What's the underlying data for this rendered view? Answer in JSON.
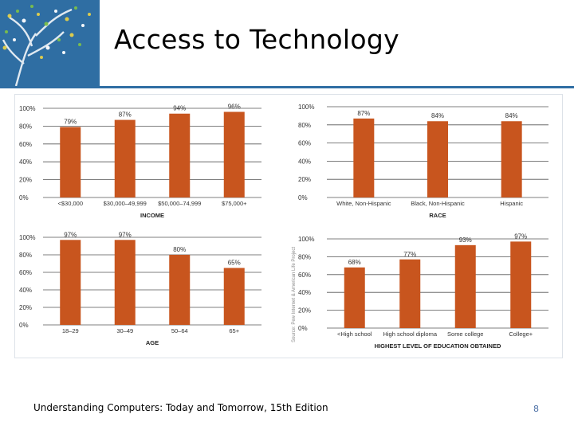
{
  "slide": {
    "title": "Access to Technology",
    "footer": "Understanding Computers: Today and Tomorrow, 15th Edition",
    "page_number": "8",
    "source_note": "Source: Pew Internet & American Life Project",
    "accent_color": "#2f6ea3",
    "bar_color": "#c8551e"
  },
  "chart_data": [
    {
      "type": "bar",
      "title": "INCOME",
      "categories": [
        "<$30,000",
        "$30,000–49,999",
        "$50,000–74,999",
        "$75,000+"
      ],
      "values": [
        79,
        87,
        94,
        96
      ],
      "value_labels": [
        "79%",
        "87%",
        "94%",
        "96%"
      ],
      "ylim": [
        0,
        100
      ],
      "yticks": [
        "0%",
        "20%",
        "40%",
        "60%",
        "80%",
        "100%"
      ],
      "xlabel": "INCOME",
      "ylabel": ""
    },
    {
      "type": "bar",
      "title": "RACE",
      "categories": [
        "White, Non-Hispanic",
        "Black, Non-Hispanic",
        "Hispanic"
      ],
      "values": [
        87,
        84,
        84
      ],
      "value_labels": [
        "87%",
        "84%",
        "84%"
      ],
      "ylim": [
        0,
        100
      ],
      "yticks": [
        "0%",
        "20%",
        "40%",
        "60%",
        "80%",
        "100%"
      ],
      "xlabel": "RACE",
      "ylabel": ""
    },
    {
      "type": "bar",
      "title": "AGE",
      "categories": [
        "18–29",
        "30–49",
        "50–64",
        "65+"
      ],
      "values": [
        97,
        97,
        80,
        65
      ],
      "value_labels": [
        "97%",
        "97%",
        "80%",
        "65%"
      ],
      "ylim": [
        0,
        100
      ],
      "yticks": [
        "0%",
        "20%",
        "40%",
        "60%",
        "80%",
        "100%"
      ],
      "xlabel": "AGE",
      "ylabel": ""
    },
    {
      "type": "bar",
      "title": "HIGHEST LEVEL OF EDUCATION OBTAINED",
      "categories": [
        "<High school",
        "High school diploma",
        "Some college",
        "College+"
      ],
      "values": [
        68,
        77,
        93,
        97
      ],
      "value_labels": [
        "68%",
        "77%",
        "93%",
        "97%"
      ],
      "ylim": [
        0,
        100
      ],
      "yticks": [
        "0%",
        "20%",
        "40%",
        "60%",
        "80%",
        "100%"
      ],
      "xlabel": "HIGHEST LEVEL OF EDUCATION OBTAINED",
      "ylabel": ""
    }
  ]
}
